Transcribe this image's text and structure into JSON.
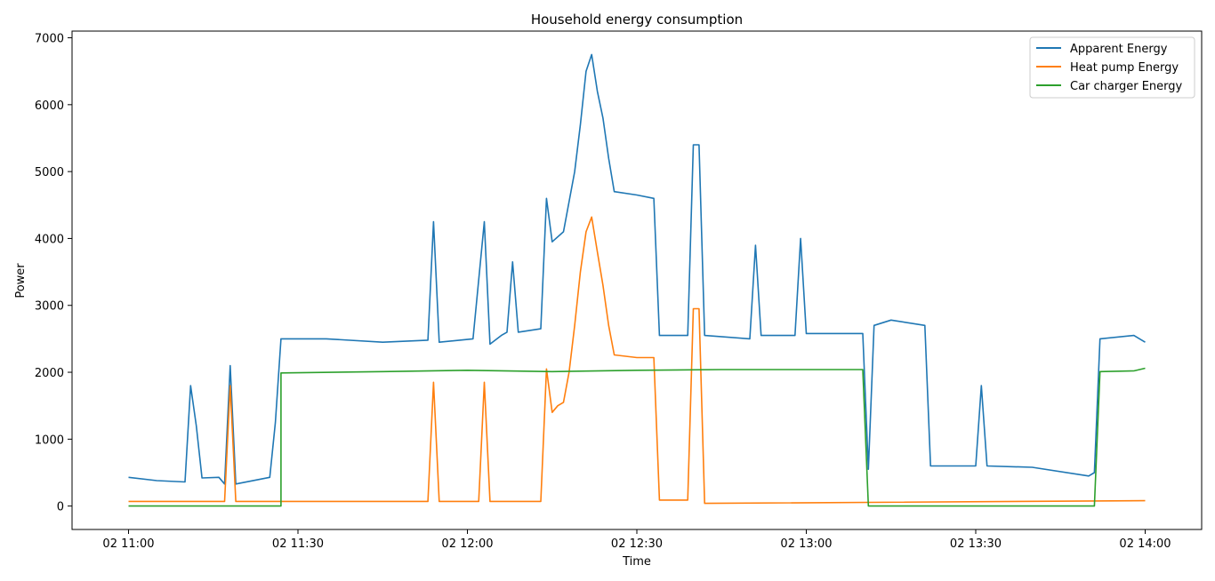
{
  "chart_data": {
    "type": "line",
    "title": "Household energy consumption",
    "xlabel": "Time",
    "ylabel": "Power",
    "xlim": [
      "2024-01-02 10:50",
      "2024-01-02 14:10"
    ],
    "ylim": [
      -350,
      7100
    ],
    "x_ticks": [
      {
        "t": "2024-01-02 11:00",
        "label": "02 11:00"
      },
      {
        "t": "2024-01-02 11:30",
        "label": "02 11:30"
      },
      {
        "t": "2024-01-02 12:00",
        "label": "02 12:00"
      },
      {
        "t": "2024-01-02 12:30",
        "label": "02 12:30"
      },
      {
        "t": "2024-01-02 13:00",
        "label": "02 13:00"
      },
      {
        "t": "2024-01-02 13:30",
        "label": "02 13:30"
      },
      {
        "t": "2024-01-02 14:00",
        "label": "02 14:00"
      }
    ],
    "y_ticks": [
      0,
      1000,
      2000,
      3000,
      4000,
      5000,
      6000,
      7000
    ],
    "grid": false,
    "legend": "top-right",
    "series": [
      {
        "name": "Apparent Energy",
        "color": "#1f77b4",
        "points": [
          [
            "2024-01-02 11:00",
            430
          ],
          [
            "2024-01-02 11:05",
            380
          ],
          [
            "2024-01-02 11:10",
            360
          ],
          [
            "2024-01-02 11:11",
            1800
          ],
          [
            "2024-01-02 11:12",
            1200
          ],
          [
            "2024-01-02 11:13",
            420
          ],
          [
            "2024-01-02 11:16",
            430
          ],
          [
            "2024-01-02 11:17",
            330
          ],
          [
            "2024-01-02 11:18",
            2100
          ],
          [
            "2024-01-02 11:19",
            330
          ],
          [
            "2024-01-02 11:25",
            430
          ],
          [
            "2024-01-02 11:26",
            1250
          ],
          [
            "2024-01-02 11:27",
            2500
          ],
          [
            "2024-01-02 11:35",
            2500
          ],
          [
            "2024-01-02 11:45",
            2450
          ],
          [
            "2024-01-02 11:53",
            2480
          ],
          [
            "2024-01-02 11:54",
            4250
          ],
          [
            "2024-01-02 11:55",
            2450
          ],
          [
            "2024-01-02 12:01",
            2500
          ],
          [
            "2024-01-02 12:03",
            4250
          ],
          [
            "2024-01-02 12:04",
            2420
          ],
          [
            "2024-01-02 12:06",
            2550
          ],
          [
            "2024-01-02 12:07",
            2600
          ],
          [
            "2024-01-02 12:08",
            3650
          ],
          [
            "2024-01-02 12:09",
            2600
          ],
          [
            "2024-01-02 12:13",
            2650
          ],
          [
            "2024-01-02 12:14",
            4600
          ],
          [
            "2024-01-02 12:15",
            3950
          ],
          [
            "2024-01-02 12:17",
            4100
          ],
          [
            "2024-01-02 12:19",
            5000
          ],
          [
            "2024-01-02 12:20",
            5700
          ],
          [
            "2024-01-02 12:21",
            6500
          ],
          [
            "2024-01-02 12:22",
            6750
          ],
          [
            "2024-01-02 12:23",
            6200
          ],
          [
            "2024-01-02 12:24",
            5800
          ],
          [
            "2024-01-02 12:25",
            5200
          ],
          [
            "2024-01-02 12:26",
            4700
          ],
          [
            "2024-01-02 12:30",
            4650
          ],
          [
            "2024-01-02 12:33",
            4600
          ],
          [
            "2024-01-02 12:34",
            2550
          ],
          [
            "2024-01-02 12:39",
            2550
          ],
          [
            "2024-01-02 12:40",
            5400
          ],
          [
            "2024-01-02 12:41",
            5400
          ],
          [
            "2024-01-02 12:42",
            2550
          ],
          [
            "2024-01-02 12:50",
            2500
          ],
          [
            "2024-01-02 12:51",
            3900
          ],
          [
            "2024-01-02 12:52",
            2550
          ],
          [
            "2024-01-02 12:58",
            2550
          ],
          [
            "2024-01-02 12:59",
            4000
          ],
          [
            "2024-01-02 13:00",
            2580
          ],
          [
            "2024-01-02 13:10",
            2580
          ],
          [
            "2024-01-02 13:11",
            550
          ],
          [
            "2024-01-02 13:12",
            2700
          ],
          [
            "2024-01-02 13:15",
            2780
          ],
          [
            "2024-01-02 13:21",
            2700
          ],
          [
            "2024-01-02 13:22",
            600
          ],
          [
            "2024-01-02 13:30",
            600
          ],
          [
            "2024-01-02 13:31",
            1800
          ],
          [
            "2024-01-02 13:32",
            600
          ],
          [
            "2024-01-02 13:40",
            580
          ],
          [
            "2024-01-02 13:50",
            450
          ],
          [
            "2024-01-02 13:51",
            500
          ],
          [
            "2024-01-02 13:52",
            2500
          ],
          [
            "2024-01-02 13:58",
            2550
          ],
          [
            "2024-01-02 14:00",
            2450
          ]
        ]
      },
      {
        "name": "Heat pump Energy",
        "color": "#ff7f0e",
        "points": [
          [
            "2024-01-02 11:00",
            70
          ],
          [
            "2024-01-02 11:17",
            70
          ],
          [
            "2024-01-02 11:18",
            1800
          ],
          [
            "2024-01-02 11:19",
            70
          ],
          [
            "2024-01-02 11:53",
            70
          ],
          [
            "2024-01-02 11:54",
            1850
          ],
          [
            "2024-01-02 11:55",
            70
          ],
          [
            "2024-01-02 12:02",
            70
          ],
          [
            "2024-01-02 12:03",
            1850
          ],
          [
            "2024-01-02 12:04",
            70
          ],
          [
            "2024-01-02 12:13",
            70
          ],
          [
            "2024-01-02 12:14",
            2050
          ],
          [
            "2024-01-02 12:15",
            1400
          ],
          [
            "2024-01-02 12:16",
            1500
          ],
          [
            "2024-01-02 12:17",
            1550
          ],
          [
            "2024-01-02 12:18",
            2000
          ],
          [
            "2024-01-02 12:19",
            2700
          ],
          [
            "2024-01-02 12:20",
            3500
          ],
          [
            "2024-01-02 12:21",
            4100
          ],
          [
            "2024-01-02 12:22",
            4320
          ],
          [
            "2024-01-02 12:23",
            3800
          ],
          [
            "2024-01-02 12:24",
            3300
          ],
          [
            "2024-01-02 12:25",
            2700
          ],
          [
            "2024-01-02 12:26",
            2260
          ],
          [
            "2024-01-02 12:30",
            2220
          ],
          [
            "2024-01-02 12:33",
            2220
          ],
          [
            "2024-01-02 12:34",
            90
          ],
          [
            "2024-01-02 12:39",
            90
          ],
          [
            "2024-01-02 12:40",
            2950
          ],
          [
            "2024-01-02 12:41",
            2950
          ],
          [
            "2024-01-02 12:42",
            40
          ],
          [
            "2024-01-02 14:00",
            80
          ]
        ]
      },
      {
        "name": "Car charger Energy",
        "color": "#2ca02c",
        "points": [
          [
            "2024-01-02 11:00",
            0
          ],
          [
            "2024-01-02 11:27",
            0
          ],
          [
            "2024-01-02 11:27",
            1990
          ],
          [
            "2024-01-02 11:45",
            2010
          ],
          [
            "2024-01-02 12:00",
            2030
          ],
          [
            "2024-01-02 12:15",
            2010
          ],
          [
            "2024-01-02 12:30",
            2030
          ],
          [
            "2024-01-02 12:45",
            2040
          ],
          [
            "2024-01-02 13:00",
            2040
          ],
          [
            "2024-01-02 13:10",
            2040
          ],
          [
            "2024-01-02 13:11",
            0
          ],
          [
            "2024-01-02 13:51",
            0
          ],
          [
            "2024-01-02 13:52",
            2010
          ],
          [
            "2024-01-02 13:58",
            2020
          ],
          [
            "2024-01-02 14:00",
            2060
          ]
        ]
      }
    ]
  }
}
